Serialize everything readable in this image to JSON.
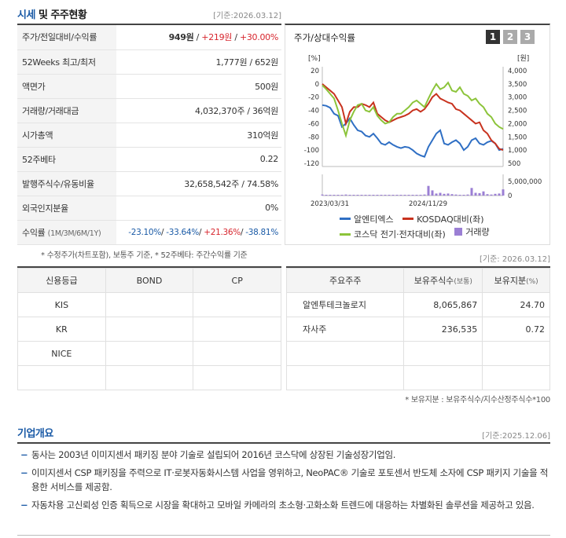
{
  "market": {
    "title_a": "시세",
    "title_b": " 및 주주현황",
    "date": "[기준:2026.03.12]",
    "rows": [
      {
        "label": "주가/전일대비/수익률",
        "v1": "949원",
        "sep1": " / ",
        "v2": "+219원",
        "sep2": " / ",
        "v3": "+30.00%"
      },
      {
        "label": "52Weeks 최고/최저",
        "value": "1,777원 / 652원"
      },
      {
        "label": "액면가",
        "value": "500원"
      },
      {
        "label": "거래량/거래대금",
        "value": "4,032,370주 / 36억원"
      },
      {
        "label": "시가총액",
        "value": "310억원"
      },
      {
        "label": "52주베타",
        "value": "0.22"
      },
      {
        "label": "발행주식수/유동비율",
        "value": "32,658,542주 / 74.58%"
      },
      {
        "label": "외국인지분율",
        "value": "0%"
      }
    ],
    "return_row": {
      "label": "수익률",
      "label_sub": "(1M/3M/6M/1Y)",
      "m1": "-23.10%",
      "m3": "-33.64%",
      "m6": "+21.36%",
      "y1": "-38.81%",
      "sep": "/ "
    },
    "footnote": "* 수정주가(차트포함), 보통주 기준, * 52주베타: 주간수익률 기준"
  },
  "chart": {
    "title": "주가/상대수익률",
    "tabs": [
      "1",
      "2",
      "3"
    ],
    "left_unit": "[%]",
    "right_unit": "[원]",
    "left_ticks": [
      "20",
      "0",
      "-20",
      "-40",
      "-60",
      "-80",
      "-100",
      "-120"
    ],
    "right_ticks": [
      "4,000",
      "3,500",
      "3,000",
      "2,500",
      "2,000",
      "1,500",
      "1,000",
      "500"
    ],
    "vol_tick_top": "5,000,000",
    "vol_tick_bottom": "0",
    "x_labels": [
      "2023/03/31",
      "2024/11/29"
    ],
    "legend": [
      {
        "name": "알엔티엑스",
        "color": "#2f6fc4"
      },
      {
        "name": "KOSDAQ대비(좌)",
        "color": "#c8321e"
      },
      {
        "name": "코스닥 전기·전자대비(좌)",
        "color": "#8cc43a"
      },
      {
        "name": "거래량",
        "color": "#9b7fd4"
      }
    ]
  },
  "chart_data": {
    "type": "line",
    "ylim_left": [
      -120,
      20
    ],
    "ylim_right": [
      500,
      4000
    ],
    "series": [
      {
        "name": "알엔티엑스",
        "axis": "left",
        "values": [
          -32,
          -33,
          -36,
          -45,
          -48,
          -65,
          -60,
          -52,
          -62,
          -70,
          -72,
          -78,
          -80,
          -75,
          -82,
          -90,
          -92,
          -88,
          -92,
          -95,
          -97,
          -95,
          -96,
          -100,
          -105,
          -108,
          -110,
          -95,
          -85,
          -75,
          -70,
          -90,
          -92,
          -88,
          -85,
          -90,
          -100,
          -95,
          -85,
          -82,
          -90,
          -92,
          -88,
          -86,
          -90,
          -100,
          -98
        ]
      },
      {
        "name": "KOSDAQ대비(좌)",
        "axis": "left",
        "values": [
          0,
          -5,
          -10,
          -15,
          -25,
          -35,
          -60,
          -42,
          -35,
          -35,
          -30,
          -32,
          -35,
          -28,
          -45,
          -50,
          -55,
          -58,
          -55,
          -52,
          -50,
          -48,
          -45,
          -40,
          -38,
          -42,
          -38,
          -30,
          -20,
          -15,
          -22,
          -25,
          -28,
          -30,
          -38,
          -40,
          -45,
          -50,
          -55,
          -60,
          -58,
          -70,
          -75,
          -85,
          -90,
          -98,
          -100
        ]
      },
      {
        "name": "코스닥 전기·전자대비(좌)",
        "axis": "left",
        "values": [
          -2,
          -8,
          -15,
          -22,
          -40,
          -60,
          -78,
          -55,
          -42,
          -32,
          -30,
          -40,
          -42,
          -35,
          -48,
          -55,
          -60,
          -58,
          -50,
          -45,
          -45,
          -40,
          -35,
          -28,
          -25,
          -30,
          -35,
          -22,
          -10,
          0,
          -8,
          -5,
          2,
          -10,
          -12,
          -5,
          -15,
          -18,
          -25,
          -22,
          -30,
          -35,
          -45,
          -50,
          -60,
          -65,
          -68
        ]
      },
      {
        "name": "거래량",
        "axis": "volume",
        "values": [
          0.3,
          0.2,
          0.2,
          0.2,
          0.1,
          0.2,
          0.3,
          0.2,
          0.1,
          0.2,
          0.1,
          0.1,
          0.1,
          0.1,
          0.2,
          0.1,
          0.1,
          0.1,
          0.1,
          0.1,
          0.1,
          0.2,
          0.1,
          0.1,
          0.1,
          0.1,
          0.3,
          2.8,
          1.5,
          0.6,
          0.8,
          0.5,
          0.6,
          0.4,
          0.3,
          0.2,
          0.2,
          0.3,
          2.2,
          0.8,
          0.7,
          1.2,
          0.4,
          0.3,
          0.5,
          0.6,
          1.8
        ]
      }
    ]
  },
  "credit": {
    "headers": [
      "신용등급",
      "BOND",
      "CP"
    ],
    "rows": [
      [
        "KIS",
        "",
        ""
      ],
      [
        "KR",
        "",
        ""
      ],
      [
        "NICE",
        "",
        ""
      ],
      [
        "",
        "",
        ""
      ]
    ]
  },
  "holders": {
    "date": "[기준: 2026.03.12]",
    "headers": [
      "주요주주",
      "보유주식수",
      "(보통)",
      "보유지분",
      "(%)"
    ],
    "rows": [
      [
        "알엔투테크놀로지",
        "8,065,867",
        "24.70"
      ],
      [
        "자사주",
        "236,535",
        "0.72"
      ],
      [
        "",
        "",
        ""
      ],
      [
        "",
        "",
        ""
      ]
    ],
    "footnote": "* 보유지분 : 보유주식수/지수산정주식수*100"
  },
  "overview": {
    "title": "기업개요",
    "date": "[기준:2025.12.06]",
    "items": [
      "동사는 2003년 이미지센서 패키징 분야 기술로 설립되어 2016년 코스닥에 상장된 기술성장기업임.",
      "이미지센서 CSP 패키징을 주력으로 IT·로봇자동화시스템 사업을 영위하고, NeoPAC® 기술로 포토센서 반도체 소자에 CSP 패키지 기술을 적용한 서비스를 제공함.",
      "자동차용 고신뢰성 인증 획득으로 시장을 확대하고 모바일 카메라의 초소형·고화소화 트렌드에 대응하는 차별화된 솔루션을 제공하고 있음."
    ]
  }
}
